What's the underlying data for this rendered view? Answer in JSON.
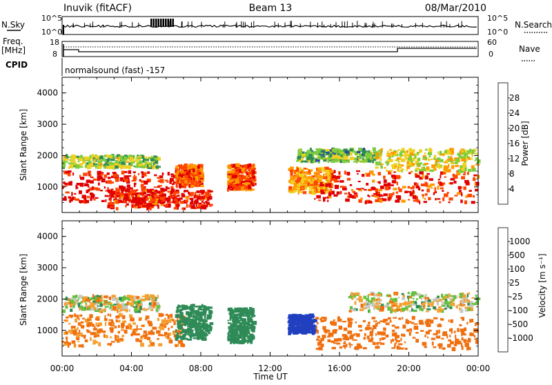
{
  "header": {
    "station": "Inuvik (fitACF)",
    "beam": "Beam 13",
    "date": "08/Mar/2010"
  },
  "panels": {
    "nsky_label": "N.Sky",
    "nsky_ticks": [
      "10^5",
      "10^0"
    ],
    "nsearch_label": "N.Search",
    "freq_label": "Freq.",
    "freq_unit": "[MHz]",
    "freq_ticks": [
      "18",
      "8"
    ],
    "nave_label": "Nave",
    "nave_ticks": [
      "60",
      "0"
    ],
    "cpid_label": "CPID",
    "cpid_text": "normalsound (fast) -157"
  },
  "axes": {
    "ylabel": "Slant Range [km]",
    "xlabel": "Time UT",
    "y_ticks": [
      "1000",
      "2000",
      "3000",
      "4000"
    ],
    "x_ticks": [
      "00:00",
      "04:00",
      "08:00",
      "12:00",
      "16:00",
      "20:00",
      "00:00"
    ]
  },
  "colorbars": {
    "power_label": "Power [dB]",
    "power_ticks": [
      "28",
      "24",
      "20",
      "16",
      "12",
      "8",
      "4"
    ],
    "velocity_label": "Velocity [m s⁻¹]",
    "velocity_ticks": [
      "1000",
      "500",
      "100",
      "25",
      "-25",
      "-100",
      "-500",
      "-1000"
    ],
    "power_colors": [
      "#0000ff",
      "#2d44a5",
      "#2e8b57",
      "#7ccd3c",
      "#f0d020",
      "#ff9900",
      "#ff4500",
      "#e00000"
    ],
    "velocity_colors": [
      "#2040c0",
      "#2e8b57",
      "#66c040",
      "#c8c8c0",
      "#f5a030",
      "#f07010",
      "#e00000"
    ]
  },
  "chart_data": [
    {
      "type": "heatmap",
      "title": "Power",
      "xlabel": "Time UT",
      "ylabel": "Slant Range [km]",
      "x_range": [
        "00:00",
        "24:00"
      ],
      "ylim": [
        180,
        4500
      ],
      "colorbar_range": [
        0,
        30
      ],
      "colorbar_label": "Power [dB]",
      "blobs": [
        {
          "t0": 0.0,
          "t1": 7.0,
          "r0": 500,
          "r1": 1500,
          "value": 28
        },
        {
          "t0": 0.0,
          "t1": 5.5,
          "r0": 1600,
          "r1": 2000,
          "value": 14
        },
        {
          "t0": 2.5,
          "t1": 8.5,
          "r0": 300,
          "r1": 900,
          "value": 27
        },
        {
          "t0": 6.5,
          "t1": 8.0,
          "r0": 1000,
          "r1": 1700,
          "value": 24
        },
        {
          "t0": 9.5,
          "t1": 11.0,
          "r0": 900,
          "r1": 1700,
          "value": 24
        },
        {
          "t0": 13.0,
          "t1": 15.5,
          "r0": 800,
          "r1": 1600,
          "value": 20
        },
        {
          "t0": 13.5,
          "t1": 18.0,
          "r0": 1800,
          "r1": 2200,
          "value": 12
        },
        {
          "t0": 14.5,
          "t1": 24.0,
          "r0": 500,
          "r1": 1500,
          "value": 26
        },
        {
          "t0": 18.0,
          "t1": 24.0,
          "r0": 1500,
          "r1": 2200,
          "value": 17
        }
      ]
    },
    {
      "type": "heatmap",
      "title": "Velocity",
      "xlabel": "Time UT",
      "ylabel": "Slant Range [km]",
      "x_range": [
        "00:00",
        "24:00"
      ],
      "ylim": [
        180,
        4500
      ],
      "colorbar_range": [
        -1000,
        1000
      ],
      "colorbar_label": "Velocity [m s-1]",
      "blobs": [
        {
          "t0": 0.0,
          "t1": 7.0,
          "r0": 500,
          "r1": 1500,
          "value": -150
        },
        {
          "t0": 0.0,
          "t1": 5.5,
          "r0": 1600,
          "r1": 2100,
          "value": 10
        },
        {
          "t0": 6.5,
          "t1": 8.5,
          "r0": 700,
          "r1": 1800,
          "value": 300
        },
        {
          "t0": 9.5,
          "t1": 11.0,
          "r0": 600,
          "r1": 1700,
          "value": 300
        },
        {
          "t0": 13.0,
          "t1": 14.5,
          "r0": 900,
          "r1": 1500,
          "value": 900
        },
        {
          "t0": 14.5,
          "t1": 24.0,
          "r0": 400,
          "r1": 1400,
          "value": -300
        },
        {
          "t0": 16.5,
          "t1": 24.0,
          "r0": 1600,
          "r1": 2200,
          "value": 5
        }
      ]
    }
  ]
}
